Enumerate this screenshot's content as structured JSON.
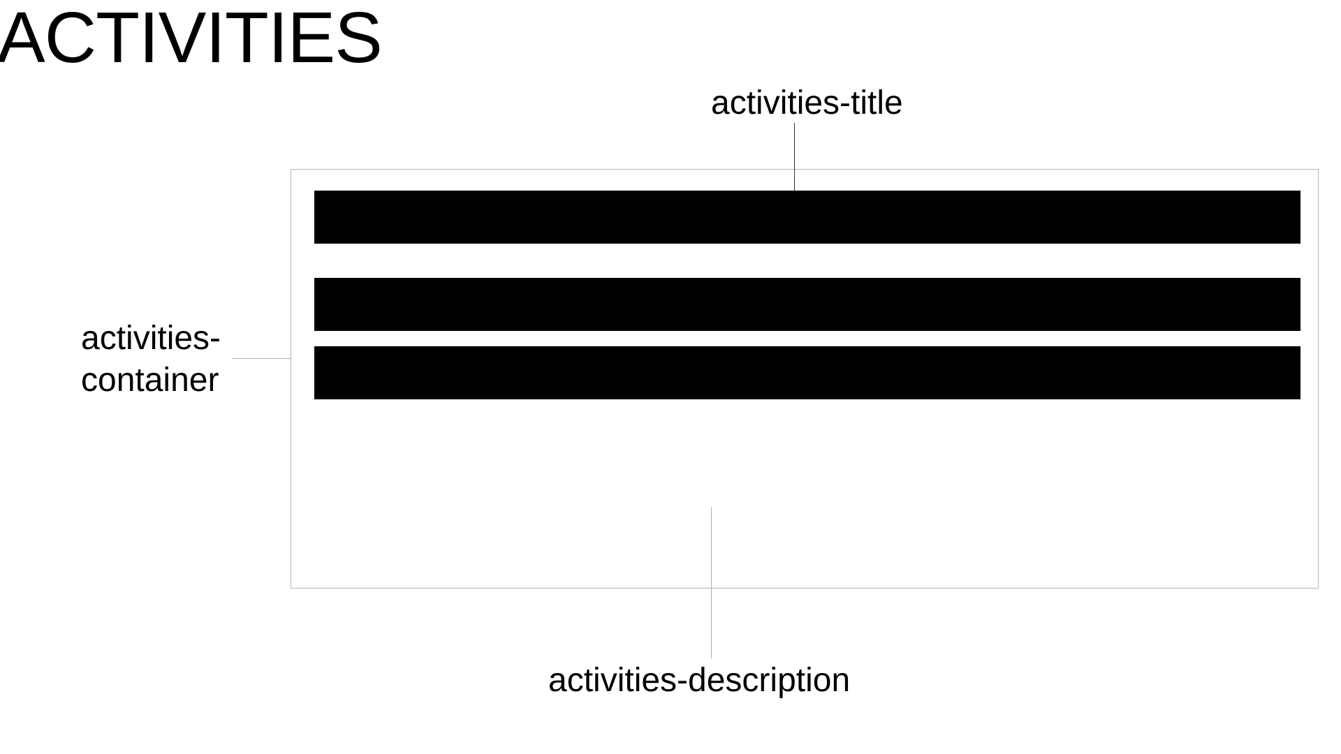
{
  "page": {
    "title": "ACTIVITIES"
  },
  "annotations": {
    "title_label": "activities-title",
    "container_label_line1": "activities-",
    "container_label_line2": "container",
    "description_label": "activities-description"
  },
  "colors": {
    "bar_fill": "#000000",
    "container_border": "#b5b5b5",
    "leader_line": "#b0b0b0",
    "background": "#ffffff"
  }
}
